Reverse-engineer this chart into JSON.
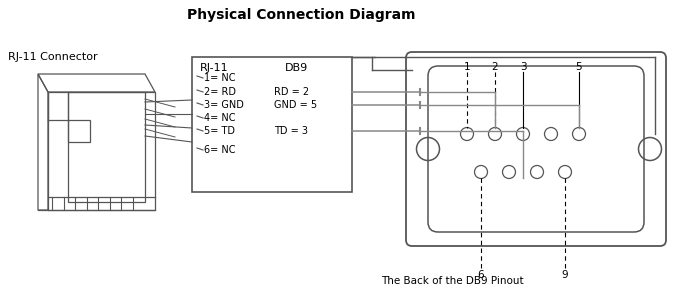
{
  "title": "Physical Connection Diagram",
  "title_fontsize": 10,
  "title_fontweight": "bold",
  "rj11_label": "RJ-11 Connector",
  "rj11_pinout_header": [
    "RJ-11",
    "DB9"
  ],
  "rj11_pins": [
    "1= NC",
    "2= RD",
    "3= GND",
    "4= NC",
    "5= TD",
    "6= NC"
  ],
  "db9_pins": [
    "RD = 2",
    "GND = 5",
    "TD = 3"
  ],
  "bottom_label": "The Back of the DB9 Pinout",
  "line_color": "#888888",
  "text_color": "#000000",
  "connector_color": "#555555",
  "bg_color": "#ffffff",
  "pin_label_color": "#000000",
  "dashed_color": "#000000",
  "figw": 6.84,
  "figh": 3.02,
  "dpi": 100
}
